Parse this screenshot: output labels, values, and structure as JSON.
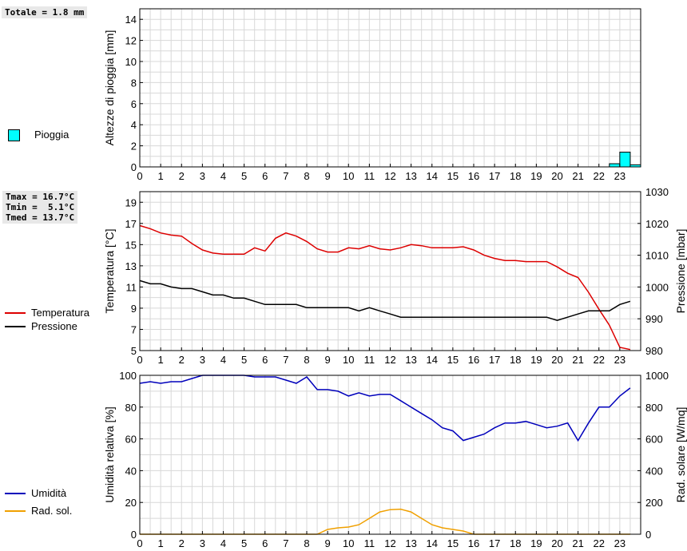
{
  "info": {
    "rain_total": "Totale = 1.8 mm",
    "tmax": "Tmax = 16.7°C",
    "tmin": "Tmin =  5.1°C",
    "tmed": "Tmed = 13.7°C"
  },
  "legend": {
    "rain": "Pioggia",
    "temperature": "Temperatura",
    "pressure": "Pressione",
    "humidity": "Umidità",
    "radiation": "Rad. sol."
  },
  "colors": {
    "rain": "#00ffff",
    "temperature": "#dd0000",
    "pressure": "#000000",
    "humidity": "#0000bb",
    "radiation": "#f0a000",
    "grid": "#d8d8d8"
  },
  "chart_data": [
    {
      "type": "bar",
      "ylabel": "Altezze di pioggia [mm]",
      "xlim": [
        0,
        24
      ],
      "ylim": [
        0,
        15
      ],
      "xticks": [
        0,
        1,
        2,
        3,
        4,
        5,
        6,
        7,
        8,
        9,
        10,
        11,
        12,
        13,
        14,
        15,
        16,
        17,
        18,
        19,
        20,
        21,
        22,
        23
      ],
      "yticks": [
        0,
        2,
        4,
        6,
        8,
        10,
        12,
        14
      ],
      "grid": true,
      "bars": [
        {
          "x0": 22.5,
          "x1": 23.0,
          "value": 0.3
        },
        {
          "x0": 23.0,
          "x1": 23.5,
          "value": 1.4
        },
        {
          "x0": 23.5,
          "x1": 24.0,
          "value": 0.2
        }
      ]
    },
    {
      "type": "line",
      "ylabel": "Temperatura [°C]",
      "y2label": "Pressione [mbar]",
      "xlim": [
        0,
        24
      ],
      "ylim": [
        5,
        20
      ],
      "y2lim": [
        980,
        1030
      ],
      "xticks": [
        0,
        1,
        2,
        3,
        4,
        5,
        6,
        7,
        8,
        9,
        10,
        11,
        12,
        13,
        14,
        15,
        16,
        17,
        18,
        19,
        20,
        21,
        22,
        23
      ],
      "yticks": [
        5,
        7,
        9,
        11,
        13,
        15,
        17,
        19
      ],
      "y2ticks": [
        980,
        990,
        1000,
        1010,
        1020,
        1030
      ],
      "grid": true,
      "series": [
        {
          "name": "Temperatura",
          "axis": "left",
          "points": [
            [
              0,
              16.8
            ],
            [
              0.5,
              16.5
            ],
            [
              1,
              16.1
            ],
            [
              1.5,
              15.9
            ],
            [
              2,
              15.8
            ],
            [
              2.5,
              15.1
            ],
            [
              3,
              14.5
            ],
            [
              3.5,
              14.2
            ],
            [
              4,
              14.1
            ],
            [
              4.5,
              14.1
            ],
            [
              5,
              14.1
            ],
            [
              5.5,
              14.7
            ],
            [
              6,
              14.4
            ],
            [
              6.5,
              15.6
            ],
            [
              7,
              16.1
            ],
            [
              7.5,
              15.8
            ],
            [
              8,
              15.3
            ],
            [
              8.5,
              14.6
            ],
            [
              9,
              14.3
            ],
            [
              9.5,
              14.3
            ],
            [
              10,
              14.7
            ],
            [
              10.5,
              14.6
            ],
            [
              11,
              14.9
            ],
            [
              11.5,
              14.6
            ],
            [
              12,
              14.5
            ],
            [
              12.5,
              14.7
            ],
            [
              13,
              15.0
            ],
            [
              13.5,
              14.9
            ],
            [
              14,
              14.7
            ],
            [
              14.5,
              14.7
            ],
            [
              15,
              14.7
            ],
            [
              15.5,
              14.8
            ],
            [
              16,
              14.5
            ],
            [
              16.5,
              14.0
            ],
            [
              17,
              13.7
            ],
            [
              17.5,
              13.5
            ],
            [
              18,
              13.5
            ],
            [
              18.5,
              13.4
            ],
            [
              19,
              13.4
            ],
            [
              19.5,
              13.4
            ],
            [
              20,
              12.9
            ],
            [
              20.5,
              12.3
            ],
            [
              21,
              11.9
            ],
            [
              21.5,
              10.5
            ],
            [
              22,
              8.9
            ],
            [
              22.5,
              7.4
            ],
            [
              23,
              5.3
            ],
            [
              23.5,
              5.1
            ]
          ]
        },
        {
          "name": "Pressione",
          "axis": "right",
          "points": [
            [
              0,
              1002
            ],
            [
              0.5,
              1001
            ],
            [
              1,
              1001
            ],
            [
              1.5,
              1000
            ],
            [
              2,
              999.5
            ],
            [
              2.5,
              999.5
            ],
            [
              3,
              998.5
            ],
            [
              3.5,
              997.5
            ],
            [
              4,
              997.5
            ],
            [
              4.5,
              996.5
            ],
            [
              5,
              996.5
            ],
            [
              5.5,
              995.5
            ],
            [
              6,
              994.5
            ],
            [
              6.5,
              994.5
            ],
            [
              7,
              994.5
            ],
            [
              7.5,
              994.5
            ],
            [
              8,
              993.5
            ],
            [
              8.5,
              993.5
            ],
            [
              9,
              993.5
            ],
            [
              9.5,
              993.5
            ],
            [
              10,
              993.5
            ],
            [
              10.5,
              992.5
            ],
            [
              11,
              993.5
            ],
            [
              11.5,
              992.5
            ],
            [
              12,
              991.5
            ],
            [
              12.5,
              990.5
            ],
            [
              13,
              990.5
            ],
            [
              14,
              990.5
            ],
            [
              15,
              990.5
            ],
            [
              16,
              990.5
            ],
            [
              17,
              990.5
            ],
            [
              18,
              990.5
            ],
            [
              19,
              990.5
            ],
            [
              19.5,
              990.5
            ],
            [
              20,
              989.5
            ],
            [
              20.5,
              990.5
            ],
            [
              21,
              991.5
            ],
            [
              21.5,
              992.5
            ],
            [
              22,
              992.5
            ],
            [
              22.5,
              992.5
            ],
            [
              23,
              994.5
            ],
            [
              23.5,
              995.5
            ]
          ]
        }
      ]
    },
    {
      "type": "line",
      "ylabel": "Umidità relativa [%]",
      "y2label": "Rad. solare [W/mq]",
      "xlim": [
        0,
        24
      ],
      "ylim": [
        0,
        100
      ],
      "y2lim": [
        0,
        1000
      ],
      "xticks": [
        0,
        1,
        2,
        3,
        4,
        5,
        6,
        7,
        8,
        9,
        10,
        11,
        12,
        13,
        14,
        15,
        16,
        17,
        18,
        19,
        20,
        21,
        22,
        23
      ],
      "yticks": [
        0,
        20,
        40,
        60,
        80,
        100
      ],
      "y2ticks": [
        0,
        200,
        400,
        600,
        800,
        1000
      ],
      "grid": true,
      "series": [
        {
          "name": "Umidità",
          "axis": "left",
          "points": [
            [
              0,
              95
            ],
            [
              0.5,
              96
            ],
            [
              1,
              95
            ],
            [
              1.5,
              96
            ],
            [
              2,
              96
            ],
            [
              2.5,
              98
            ],
            [
              3,
              100
            ],
            [
              4,
              100
            ],
            [
              5,
              100
            ],
            [
              5.5,
              99
            ],
            [
              6,
              99
            ],
            [
              6.5,
              99
            ],
            [
              7,
              97
            ],
            [
              7.5,
              95
            ],
            [
              8,
              99
            ],
            [
              8.5,
              91
            ],
            [
              9,
              91
            ],
            [
              9.5,
              90
            ],
            [
              10,
              87
            ],
            [
              10.5,
              89
            ],
            [
              11,
              87
            ],
            [
              11.5,
              88
            ],
            [
              12,
              88
            ],
            [
              12.5,
              84
            ],
            [
              13,
              80
            ],
            [
              13.5,
              76
            ],
            [
              14,
              72
            ],
            [
              14.5,
              67
            ],
            [
              15,
              65
            ],
            [
              15.5,
              59
            ],
            [
              16,
              61
            ],
            [
              16.5,
              63
            ],
            [
              17,
              67
            ],
            [
              17.5,
              70
            ],
            [
              18,
              70
            ],
            [
              18.5,
              71
            ],
            [
              19,
              69
            ],
            [
              19.5,
              67
            ],
            [
              20,
              68
            ],
            [
              20.5,
              70
            ],
            [
              21,
              59
            ],
            [
              21.5,
              70
            ],
            [
              22,
              80
            ],
            [
              22.5,
              80
            ],
            [
              23,
              87
            ],
            [
              23.5,
              92
            ]
          ]
        },
        {
          "name": "Rad. sol.",
          "axis": "right",
          "points": [
            [
              0,
              0
            ],
            [
              8.5,
              0
            ],
            [
              9,
              30
            ],
            [
              9.5,
              40
            ],
            [
              10,
              45
            ],
            [
              10.5,
              60
            ],
            [
              11,
              100
            ],
            [
              11.5,
              140
            ],
            [
              12,
              155
            ],
            [
              12.5,
              158
            ],
            [
              13,
              140
            ],
            [
              13.5,
              100
            ],
            [
              14,
              60
            ],
            [
              14.5,
              40
            ],
            [
              15,
              30
            ],
            [
              15.5,
              20
            ],
            [
              16,
              0
            ],
            [
              23.5,
              0
            ]
          ]
        }
      ]
    }
  ]
}
